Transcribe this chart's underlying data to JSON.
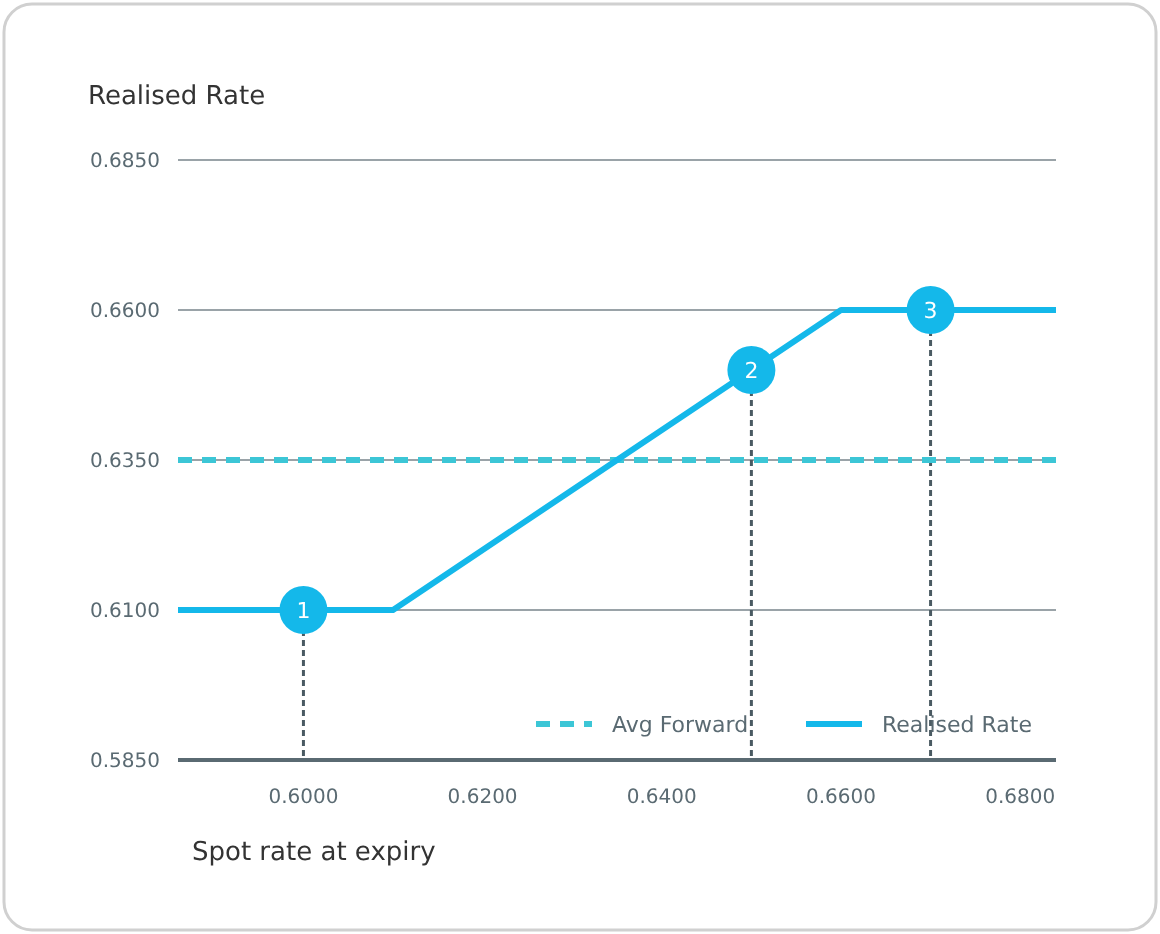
{
  "chart_data": {
    "type": "line",
    "ylabel": "Realised Rate",
    "xlabel": "Spot rate at expiry",
    "xlim": [
      0.586,
      0.684
    ],
    "ylim": [
      0.585,
      0.685
    ],
    "xticks": [
      {
        "value": 0.6,
        "label": "0.6000"
      },
      {
        "value": 0.62,
        "label": "0.6200"
      },
      {
        "value": 0.64,
        "label": "0.6400"
      },
      {
        "value": 0.66,
        "label": "0.6600"
      },
      {
        "value": 0.68,
        "label": "0.6800"
      }
    ],
    "yticks": [
      {
        "value": 0.585,
        "label": "0.5850"
      },
      {
        "value": 0.61,
        "label": "0.6100"
      },
      {
        "value": 0.635,
        "label": "0.6350"
      },
      {
        "value": 0.66,
        "label": "0.6600"
      },
      {
        "value": 0.685,
        "label": "0.6850"
      }
    ],
    "series": [
      {
        "name": "Avg Forward",
        "color": "#3cc6d6",
        "x": [
          0.586,
          0.684
        ],
        "values": [
          0.635,
          0.635
        ],
        "line_style": "dashed"
      },
      {
        "name": "Realised Rate",
        "color": "#14b8ea",
        "x": [
          0.586,
          0.61,
          0.66,
          0.684
        ],
        "values": [
          0.61,
          0.61,
          0.66,
          0.66
        ],
        "line_style": "solid"
      }
    ],
    "annotations": [
      {
        "text": "1",
        "x": 0.6,
        "y": 0.61
      },
      {
        "text": "2",
        "x": 0.65,
        "y": 0.65
      },
      {
        "text": "3",
        "x": 0.67,
        "y": 0.66
      }
    ],
    "grid": "y",
    "legend": "bottom right",
    "marker": "none"
  }
}
